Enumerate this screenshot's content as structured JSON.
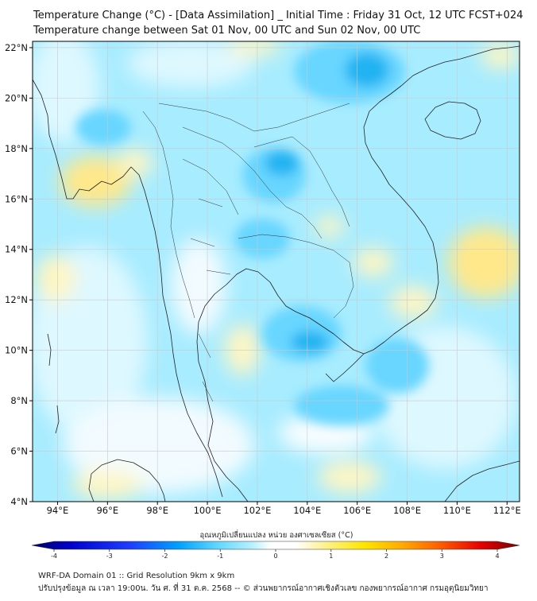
{
  "title_line1": "Temperature Change (°C) - [Data Assimilation] _ Initial Time : Friday 31 Oct, 12 UTC FCST+024",
  "title_line2": "Temperature change between Sat 01 Nov, 00 UTC and Sun 02 Nov, 00 UTC",
  "lat_labels": [
    "22°N",
    "20°N",
    "18°N",
    "16°N",
    "14°N",
    "12°N",
    "10°N",
    "8°N",
    "6°N",
    "4°N"
  ],
  "lat_values": [
    22,
    20,
    18,
    16,
    14,
    12,
    10,
    8,
    6,
    4
  ],
  "lon_labels": [
    "94°E",
    "96°E",
    "98°E",
    "100°E",
    "102°E",
    "104°E",
    "106°E",
    "108°E",
    "110°E",
    "112°E"
  ],
  "lon_values": [
    94,
    96,
    98,
    100,
    102,
    104,
    106,
    108,
    110,
    112
  ],
  "map_extent": {
    "lon_min": 93,
    "lon_max": 112.5,
    "lat_min": 4,
    "lat_max": 22.25
  },
  "colorbar": {
    "label": "อุณหภูมิเปลี่ยนแปลง หน่วย องศาเซลเซียส (°C)",
    "min": -4,
    "max": 4,
    "ticks": [
      "-4",
      "-3",
      "-2",
      "-1",
      "0",
      "1",
      "2",
      "3",
      "4"
    ],
    "colors": [
      "#000066",
      "#0000cc",
      "#1e3cff",
      "#00a0ff",
      "#5fd7ff",
      "#b4f0ff",
      "#ffffff",
      "#ffffff",
      "#fff5b4",
      "#ffe600",
      "#ffaa00",
      "#ff5a00",
      "#e60000",
      "#780000"
    ]
  },
  "footer_line1": "WRF-DA Domain 01 :: Grid Resolution 9km x 9km",
  "footer_line2": "ปรับปรุงข้อมูล ณ เวลา 19:00น. วัน ศ. ที่ 31 ต.ค. 2568 -- © ส่วนพยากรณ์อากาศเชิงตัวเลข กองพยากรณ์อากาศ กรมอุตุนิยมวิทยา",
  "field_colors": {
    "base": "#a8ecff",
    "light": "#def8ff",
    "white": "#f8fdff",
    "mid": "#68d6ff",
    "deep": "#22b4f2",
    "yellow": "#fff6c2",
    "yellow_strong": "#ffe88a"
  }
}
